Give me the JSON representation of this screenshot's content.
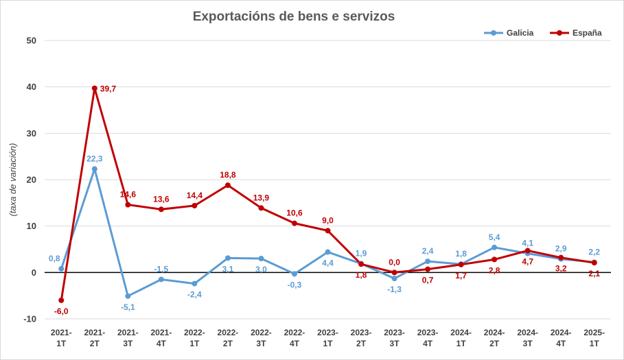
{
  "chart_data": {
    "type": "line",
    "title": "Exportacións de bens e servizos",
    "ylabel": "(taxa de variación)",
    "xlabel": "",
    "ylim": [
      -10,
      50
    ],
    "yticks": [
      -10,
      0,
      10,
      20,
      30,
      40,
      50
    ],
    "grid": true,
    "legend_position": "top-right",
    "categories": [
      [
        "2021-",
        "1T"
      ],
      [
        "2021-",
        "2T"
      ],
      [
        "2021-",
        "3T"
      ],
      [
        "2021-",
        "4T"
      ],
      [
        "2022-",
        "1T"
      ],
      [
        "2022-",
        "2T"
      ],
      [
        "2022-",
        "3T"
      ],
      [
        "2022-",
        "4T"
      ],
      [
        "2023-",
        "1T"
      ],
      [
        "2023-",
        "2T"
      ],
      [
        "2023-",
        "3T"
      ],
      [
        "2023-",
        "4T"
      ],
      [
        "2024-",
        "1T"
      ],
      [
        "2024-",
        "2T"
      ],
      [
        "2024-",
        "3T"
      ],
      [
        "2024-",
        "4T"
      ],
      [
        "2025-",
        "1T"
      ]
    ],
    "series": [
      {
        "name": "Galicia",
        "color": "#5b9bd5",
        "values": [
          0.8,
          22.3,
          -5.1,
          -1.5,
          -2.4,
          3.1,
          3.0,
          -0.3,
          4.4,
          1.9,
          -1.3,
          2.4,
          1.8,
          5.4,
          4.1,
          2.9,
          2.2
        ],
        "labels": [
          "0,8",
          "22,3",
          "-5,1",
          "-1,5",
          "-2,4",
          "3,1",
          "3,0",
          "-0,3",
          "4,4",
          "1,9",
          "-1,3",
          "2,4",
          "1,8",
          "5,4",
          "4,1",
          "2,9",
          "2,2"
        ]
      },
      {
        "name": "España",
        "color": "#c00000",
        "values": [
          -6.0,
          39.7,
          14.6,
          13.6,
          14.4,
          18.8,
          13.9,
          10.6,
          9.0,
          1.8,
          0.0,
          0.7,
          1.7,
          2.8,
          4.7,
          3.2,
          2.1
        ],
        "labels": [
          "-6,0",
          "39,7",
          "14,6",
          "13,6",
          "14,4",
          "18,8",
          "13,9",
          "10,6",
          "9,0",
          "1,8",
          "0,0",
          "0,7",
          "1,7",
          "2,8",
          "4,7",
          "3,2",
          "2,1"
        ]
      }
    ]
  }
}
